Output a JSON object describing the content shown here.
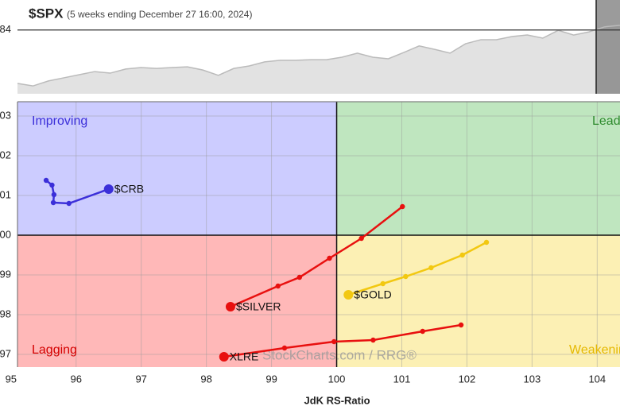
{
  "chart_data": [
    {
      "type": "area",
      "title": "$SPX",
      "subtitle": "(5 weeks ending December 27 16:00, 2024)",
      "color": "#bbbbbb",
      "fill": "#e2e2e2",
      "values": [
        5813,
        5805,
        5821,
        5831,
        5841,
        5851,
        5846,
        5859,
        5864,
        5861,
        5864,
        5866,
        5856,
        5839,
        5861,
        5869,
        5882,
        5887,
        5887,
        5889,
        5889,
        5897,
        5910,
        5897,
        5892,
        5912,
        5933,
        5922,
        5910,
        5940,
        5953,
        5953,
        5963,
        5968,
        5958,
        5983,
        5968,
        5978,
        5994,
        5999
      ],
      "ylim": [
        5780,
        6080
      ],
      "yticks": [
        {
          "value": 5984,
          "label": "84"
        }
      ]
    },
    {
      "type": "rrg",
      "xlabel": "JdK RS-Ratio",
      "watermark": "StockCharts.com / RRG®",
      "xlim": [
        95.1,
        104.35
      ],
      "xticks": [
        95,
        96,
        97,
        98,
        99,
        100,
        101,
        102,
        103,
        104
      ],
      "ylim": [
        96.68,
        103.36
      ],
      "yticks": [
        97,
        98,
        99,
        100,
        101,
        102,
        103
      ],
      "center": [
        100,
        100
      ],
      "quadrants": [
        {
          "name": "Improving",
          "color": "#ccccff",
          "text_color": "#3b2fd9"
        },
        {
          "name": "Leading",
          "color": "#bfe6bf",
          "text_color": "#2e8b2e"
        },
        {
          "name": "Lagging",
          "color": "#ffb8b8",
          "text_color": "#d40000"
        },
        {
          "name": "Weakening",
          "color": "#fcf0b4",
          "text_color": "#e5b800"
        }
      ],
      "series": [
        {
          "name": "$CRB",
          "color": "#3b2fd9",
          "x": [
            95.54,
            95.63,
            95.66,
            95.65,
            95.89,
            96.5
          ],
          "y": [
            101.38,
            101.26,
            101.02,
            100.82,
            100.8,
            101.16
          ]
        },
        {
          "name": "$SILVER",
          "color": "#e8100f",
          "x": [
            101.01,
            100.38,
            99.89,
            99.43,
            99.1,
            98.37
          ],
          "y": [
            100.72,
            99.92,
            99.42,
            98.94,
            98.72,
            98.2
          ]
        },
        {
          "name": "$GOLD",
          "color": "#f2c811",
          "x": [
            102.3,
            101.93,
            101.45,
            101.06,
            100.71,
            100.18
          ],
          "y": [
            99.82,
            99.5,
            99.18,
            98.96,
            98.78,
            98.5
          ]
        },
        {
          "name": "XLRE",
          "color": "#e8100f",
          "x": [
            101.91,
            101.32,
            100.56,
            99.96,
            99.2,
            98.27
          ],
          "y": [
            97.74,
            97.58,
            97.36,
            97.32,
            97.16,
            96.94
          ]
        }
      ]
    }
  ]
}
